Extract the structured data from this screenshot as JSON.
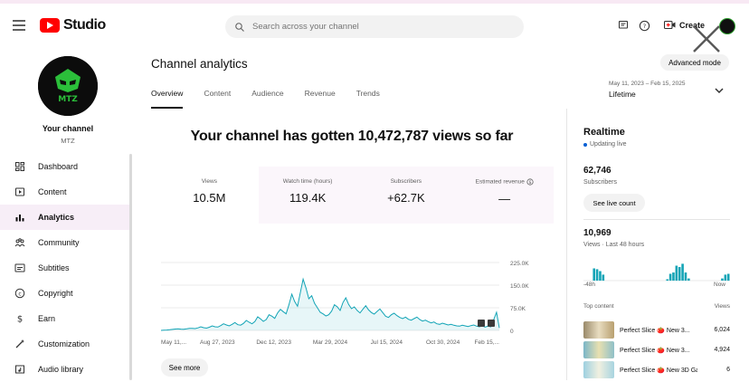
{
  "header": {
    "logo_text": "Studio",
    "search_placeholder": "Search across your channel",
    "create_label": "Create"
  },
  "sidebar": {
    "channel_title": "Your channel",
    "channel_name": "MTZ",
    "avatar_text": "MTZ",
    "items": [
      {
        "label": "Dashboard",
        "icon": "dashboard-icon"
      },
      {
        "label": "Content",
        "icon": "content-icon"
      },
      {
        "label": "Analytics",
        "icon": "analytics-icon",
        "active": true
      },
      {
        "label": "Community",
        "icon": "community-icon"
      },
      {
        "label": "Subtitles",
        "icon": "subtitles-icon"
      },
      {
        "label": "Copyright",
        "icon": "copyright-icon"
      },
      {
        "label": "Earn",
        "icon": "earn-icon"
      },
      {
        "label": "Customization",
        "icon": "customization-icon"
      },
      {
        "label": "Audio library",
        "icon": "audio-library-icon"
      }
    ]
  },
  "main": {
    "title": "Channel analytics",
    "advanced_mode": "Advanced mode",
    "tabs": [
      "Overview",
      "Content",
      "Audience",
      "Revenue",
      "Trends"
    ],
    "date_range": "May 11, 2023 – Feb 15, 2025",
    "date_label": "Lifetime",
    "headline": "Your channel has gotten 10,472,787 views so far",
    "metrics": [
      {
        "label": "Views",
        "value": "10.5M"
      },
      {
        "label": "Watch time (hours)",
        "value": "119.4K"
      },
      {
        "label": "Subscribers",
        "value": "+62.7K"
      },
      {
        "label": "Estimated revenue",
        "value": "—"
      }
    ],
    "see_more": "See more"
  },
  "chart_data": {
    "type": "area",
    "title": "Views",
    "x_tick_labels": [
      "May 11,...",
      "Aug 27, 2023",
      "Dec 12, 2023",
      "Mar 29, 2024",
      "Jul 15, 2024",
      "Oct 30, 2024",
      "Feb 15,..."
    ],
    "y_tick_labels": [
      "225.0K",
      "150.0K",
      "75.0K",
      "0"
    ],
    "ylim": [
      0,
      225000
    ],
    "series": [
      {
        "name": "Views",
        "color": "#12a4b6",
        "values": [
          0,
          600,
          1200,
          2000,
          3200,
          4500,
          5000,
          4200,
          3800,
          5200,
          6500,
          7000,
          6000,
          8500,
          12000,
          9000,
          7500,
          10500,
          15000,
          12000,
          11000,
          16000,
          22000,
          18000,
          15000,
          20000,
          26000,
          19000,
          17500,
          23000,
          33000,
          27000,
          22000,
          29000,
          45000,
          38000,
          30000,
          36000,
          52000,
          47000,
          40000,
          58000,
          70000,
          62000,
          55000,
          85000,
          120000,
          96000,
          80000,
          125000,
          170000,
          140000,
          105000,
          115000,
          90000,
          75000,
          60000,
          55000,
          48000,
          52000,
          64000,
          85000,
          78000,
          66000,
          92000,
          108000,
          86000,
          72000,
          78000,
          66000,
          58000,
          70000,
          82000,
          68000,
          59000,
          54000,
          63000,
          71000,
          59000,
          47000,
          43000,
          52000,
          57000,
          49000,
          43000,
          39000,
          44000,
          37000,
          34000,
          39000,
          44000,
          36000,
          31000,
          34000,
          29000,
          25000,
          28000,
          22000,
          20000,
          24000,
          21000,
          18000,
          20000,
          17000,
          15000,
          14000,
          17000,
          15000,
          13000,
          16000,
          18000,
          14000,
          12000,
          15000,
          11000,
          14000,
          12000,
          35000,
          60000,
          8000
        ]
      }
    ]
  },
  "realtime": {
    "title": "Realtime",
    "status": "Updating live",
    "subscribers": "62,746",
    "subscribers_label": "Subscribers",
    "live_button": "See live count",
    "views": "10,969",
    "views_label": "Views · Last 48 hours",
    "bars": [
      0,
      0,
      0,
      0.45,
      0.42,
      0.35,
      0.22,
      0,
      0,
      0,
      0,
      0,
      0,
      0,
      0,
      0,
      0,
      0,
      0,
      0,
      0,
      0,
      0,
      0,
      0,
      0,
      0,
      0.05,
      0.25,
      0.3,
      0.55,
      0.5,
      0.62,
      0.3,
      0.08,
      0,
      0,
      0,
      0,
      0,
      0,
      0,
      0,
      0,
      0,
      0.08,
      0.22,
      0.25
    ],
    "axis_start": "-48h",
    "axis_end": "Now",
    "top_content_label": "Top content",
    "views_col_label": "Views",
    "top_content": [
      {
        "title": "Perfect Slice 🍅 New 3...",
        "views": "6,024"
      },
      {
        "title": "Perfect Slice 🍅 New 3...",
        "views": "4,924"
      },
      {
        "title": "Perfect Slice 🍅 New 3D Ga...",
        "views": "6"
      }
    ]
  },
  "colors": {
    "accent": "#12a4b6",
    "brand_red": "#ff0000",
    "active_nav_bg": "#f7eef7"
  }
}
